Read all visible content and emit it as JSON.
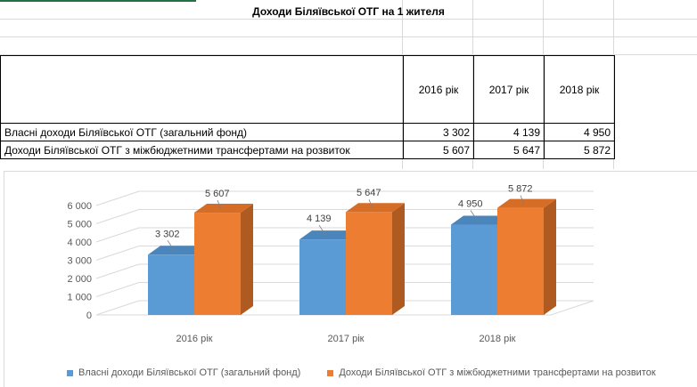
{
  "sheet": {
    "title": "Доходи Біляївської ОТГ на 1 жителя",
    "headers": [
      "",
      "2016 рік",
      "2017 рік",
      "2018 рік"
    ],
    "rows": [
      {
        "label": "Власні доходи Біляївської ОТГ (загальний фонд)",
        "values": [
          "3 302",
          "4 139",
          "4 950"
        ]
      },
      {
        "label": "Доходи  Біляївської ОТГ з міжбюджетними трансфертами на розвиток",
        "values": [
          "5 607",
          "5 647",
          "5 872"
        ]
      }
    ]
  },
  "colors": {
    "series1": "#5b9bd5",
    "series2": "#ed7d31",
    "green": "#217346"
  },
  "chart_data": {
    "type": "bar",
    "categories": [
      "2016 рік",
      "2017 рік",
      "2018 рік"
    ],
    "series": [
      {
        "name": "Власні доходи Біляївської ОТГ (загальний фонд)",
        "values": [
          3302,
          4139,
          4950
        ],
        "labels": [
          "3 302",
          "4 139",
          "4 950"
        ]
      },
      {
        "name": "Доходи  Біляївської ОТГ з міжбюджетними трансфертами на розвиток",
        "values": [
          5607,
          5647,
          5872
        ],
        "labels": [
          "5 607",
          "5 647",
          "5 872"
        ]
      }
    ],
    "yticks": [
      "0",
      "1 000",
      "2 000",
      "3 000",
      "4 000",
      "5 000",
      "6 000"
    ],
    "ylim": [
      0,
      6000
    ],
    "legend": "bottom",
    "grid": true
  }
}
